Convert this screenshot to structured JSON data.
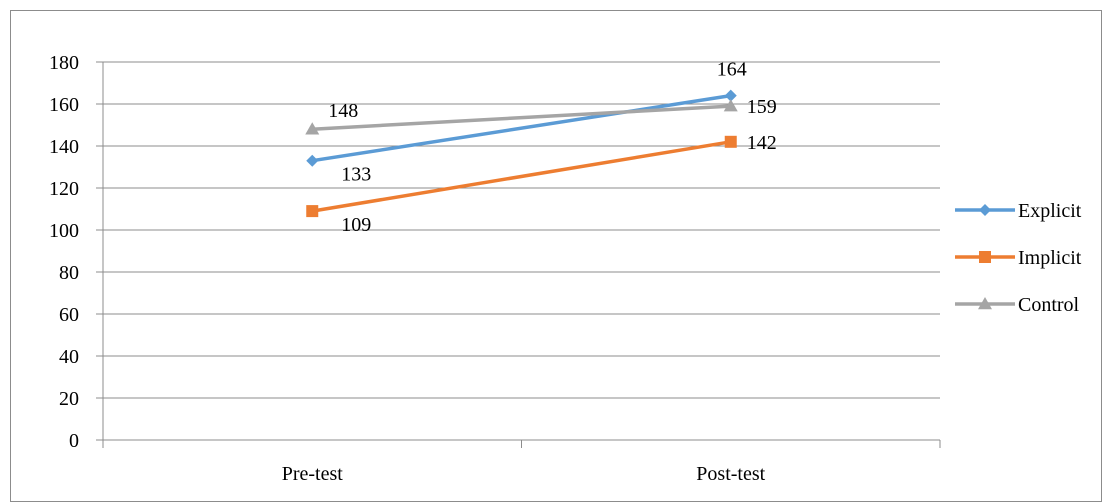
{
  "chart_data": {
    "type": "line",
    "categories": [
      "Pre-test",
      "Post-test"
    ],
    "ylim": [
      0,
      180
    ],
    "ytick_step": 20,
    "grid": true,
    "legend_position": "right",
    "series": [
      {
        "name": "Explicit",
        "values": [
          133,
          164
        ],
        "color": "#5B9BD5",
        "marker": "diamond",
        "labels": [
          "133",
          "164"
        ],
        "label_positions": [
          "below-right",
          "above"
        ]
      },
      {
        "name": "Implicit",
        "values": [
          109,
          142
        ],
        "color": "#ED7D31",
        "marker": "square",
        "labels": [
          "109",
          "142"
        ],
        "label_positions": [
          "below-right",
          "right"
        ]
      },
      {
        "name": "Control",
        "values": [
          148,
          159
        ],
        "color": "#A5A5A5",
        "marker": "triangle",
        "labels": [
          "148",
          "159"
        ],
        "label_positions": [
          "above-right",
          "right"
        ]
      }
    ]
  }
}
